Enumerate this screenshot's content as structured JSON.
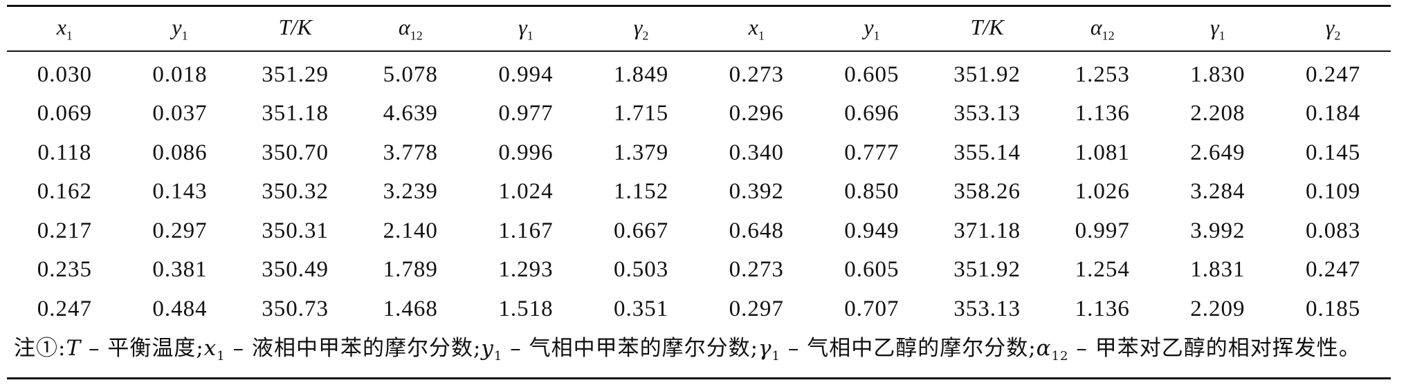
{
  "table": {
    "headers": [
      {
        "sym": "x",
        "sub": "1"
      },
      {
        "sym": "y",
        "sub": "1"
      },
      {
        "sym": "T/K",
        "sub": ""
      },
      {
        "sym": "α",
        "sub": "12"
      },
      {
        "sym": "γ",
        "sub": "1"
      },
      {
        "sym": "γ",
        "sub": "2"
      },
      {
        "sym": "x",
        "sub": "1"
      },
      {
        "sym": "y",
        "sub": "1"
      },
      {
        "sym": "T/K",
        "sub": ""
      },
      {
        "sym": "α",
        "sub": "12"
      },
      {
        "sym": "γ",
        "sub": "1"
      },
      {
        "sym": "γ",
        "sub": "2"
      }
    ],
    "rows": [
      [
        "0.030",
        "0.018",
        "351.29",
        "5.078",
        "0.994",
        "1.849",
        "0.273",
        "0.605",
        "351.92",
        "1.253",
        "1.830",
        "0.247"
      ],
      [
        "0.069",
        "0.037",
        "351.18",
        "4.639",
        "0.977",
        "1.715",
        "0.296",
        "0.696",
        "353.13",
        "1.136",
        "2.208",
        "0.184"
      ],
      [
        "0.118",
        "0.086",
        "350.70",
        "3.778",
        "0.996",
        "1.379",
        "0.340",
        "0.777",
        "355.14",
        "1.081",
        "2.649",
        "0.145"
      ],
      [
        "0.162",
        "0.143",
        "350.32",
        "3.239",
        "1.024",
        "1.152",
        "0.392",
        "0.850",
        "358.26",
        "1.026",
        "3.284",
        "0.109"
      ],
      [
        "0.217",
        "0.297",
        "350.31",
        "2.140",
        "1.167",
        "0.667",
        "0.648",
        "0.949",
        "371.18",
        "0.997",
        "3.992",
        "0.083"
      ],
      [
        "0.235",
        "0.381",
        "350.49",
        "1.789",
        "1.293",
        "0.503",
        "0.273",
        "0.605",
        "351.92",
        "1.254",
        "1.831",
        "0.247"
      ],
      [
        "0.247",
        "0.484",
        "350.73",
        "1.468",
        "1.518",
        "0.351",
        "0.297",
        "0.707",
        "353.13",
        "1.136",
        "2.209",
        "0.185"
      ]
    ]
  },
  "note": {
    "prefix": "注①:",
    "t_sym": "T",
    "t_text": " – 平衡温度;",
    "x_sym": "x",
    "x_sub": "1",
    "x_text": " – 液相中甲苯的摩尔分数;",
    "y_sym": "y",
    "y_sub": "1",
    "y_text": " – 气相中甲苯的摩尔分数;",
    "g_sym": "γ",
    "g_sub": "1",
    "g_text": " – 气相中乙醇的摩尔分数;",
    "a_sym": "α",
    "a_sub": "12",
    "a_text": " – 甲苯对乙醇的相对挥发性。"
  }
}
